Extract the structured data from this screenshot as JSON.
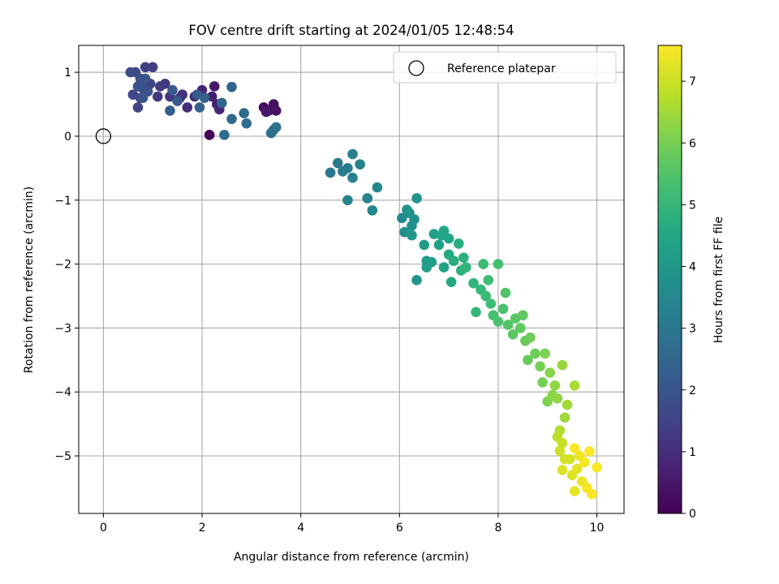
{
  "chart_data": {
    "type": "scatter",
    "title": "FOV centre drift starting at 2024/01/05 12:48:54",
    "xlabel": "Angular distance from reference (arcmin)",
    "ylabel": "Rotation from reference (arcmin)",
    "xlim": [
      -0.5,
      10.55
    ],
    "ylim": [
      -5.9,
      1.42
    ],
    "xticks": [
      0,
      2,
      4,
      6,
      8,
      10
    ],
    "yticks": [
      1,
      0,
      -1,
      -2,
      -3,
      -4,
      -5
    ],
    "xtick_labels": [
      "0",
      "2",
      "4",
      "6",
      "8",
      "10"
    ],
    "ytick_labels": [
      "1",
      "0",
      "−1",
      "−2",
      "−3",
      "−4",
      "−5"
    ],
    "grid": true,
    "legend": {
      "position": "top-right",
      "label": "Reference platepar"
    },
    "reference_point": {
      "x": 0,
      "y": 0
    },
    "colorbar": {
      "label": "Hours from first FF file",
      "range": [
        0,
        7.58
      ],
      "ticks": [
        0,
        1,
        2,
        3,
        4,
        5,
        6,
        7
      ],
      "tick_labels": [
        "0",
        "1",
        "2",
        "3",
        "4",
        "5",
        "6",
        "7"
      ],
      "colormap": "viridis"
    },
    "points": [
      {
        "x": 2.15,
        "y": 0.02,
        "c": 0.1
      },
      {
        "x": 3.25,
        "y": 0.45,
        "c": 0.2
      },
      {
        "x": 3.35,
        "y": 0.4,
        "c": 0.3
      },
      {
        "x": 3.45,
        "y": 0.5,
        "c": 0.3
      },
      {
        "x": 3.5,
        "y": 0.4,
        "c": 0.4
      },
      {
        "x": 3.3,
        "y": 0.38,
        "c": 0.5
      },
      {
        "x": 2.25,
        "y": 0.78,
        "c": 0.5
      },
      {
        "x": 2.2,
        "y": 0.62,
        "c": 0.6
      },
      {
        "x": 2.3,
        "y": 0.5,
        "c": 0.7
      },
      {
        "x": 2.35,
        "y": 0.42,
        "c": 0.8
      },
      {
        "x": 2.0,
        "y": 0.72,
        "c": 0.8
      },
      {
        "x": 1.85,
        "y": 0.62,
        "c": 0.9
      },
      {
        "x": 1.6,
        "y": 0.65,
        "c": 1.0
      },
      {
        "x": 1.7,
        "y": 0.45,
        "c": 1.0
      },
      {
        "x": 1.55,
        "y": 0.6,
        "c": 1.1
      },
      {
        "x": 1.35,
        "y": 0.62,
        "c": 1.2
      },
      {
        "x": 1.25,
        "y": 0.82,
        "c": 1.2
      },
      {
        "x": 1.15,
        "y": 0.78,
        "c": 1.3
      },
      {
        "x": 1.1,
        "y": 0.62,
        "c": 1.3
      },
      {
        "x": 1.0,
        "y": 1.08,
        "c": 1.4
      },
      {
        "x": 0.85,
        "y": 1.08,
        "c": 1.4
      },
      {
        "x": 0.95,
        "y": 0.82,
        "c": 1.5
      },
      {
        "x": 0.7,
        "y": 0.45,
        "c": 1.5
      },
      {
        "x": 0.75,
        "y": 0.6,
        "c": 1.6
      },
      {
        "x": 0.6,
        "y": 0.65,
        "c": 1.6
      },
      {
        "x": 0.55,
        "y": 1.0,
        "c": 1.7
      },
      {
        "x": 0.65,
        "y": 1.0,
        "c": 1.7
      },
      {
        "x": 0.75,
        "y": 0.9,
        "c": 1.8
      },
      {
        "x": 0.8,
        "y": 0.75,
        "c": 1.8
      },
      {
        "x": 0.85,
        "y": 0.9,
        "c": 1.9
      },
      {
        "x": 0.9,
        "y": 0.7,
        "c": 1.9
      },
      {
        "x": 0.7,
        "y": 0.78,
        "c": 2.0
      },
      {
        "x": 0.8,
        "y": 0.6,
        "c": 2.0
      },
      {
        "x": 1.4,
        "y": 0.72,
        "c": 2.1
      },
      {
        "x": 1.5,
        "y": 0.55,
        "c": 2.1
      },
      {
        "x": 1.35,
        "y": 0.4,
        "c": 2.2
      },
      {
        "x": 1.9,
        "y": 0.65,
        "c": 2.2
      },
      {
        "x": 2.05,
        "y": 0.6,
        "c": 2.3
      },
      {
        "x": 1.95,
        "y": 0.45,
        "c": 2.3
      },
      {
        "x": 2.6,
        "y": 0.77,
        "c": 2.4
      },
      {
        "x": 2.4,
        "y": 0.52,
        "c": 2.5
      },
      {
        "x": 2.6,
        "y": 0.27,
        "c": 2.6
      },
      {
        "x": 2.85,
        "y": 0.36,
        "c": 2.6
      },
      {
        "x": 2.9,
        "y": 0.2,
        "c": 2.7
      },
      {
        "x": 2.45,
        "y": 0.02,
        "c": 2.7
      },
      {
        "x": 3.4,
        "y": 0.05,
        "c": 2.8
      },
      {
        "x": 3.45,
        "y": 0.1,
        "c": 2.8
      },
      {
        "x": 3.5,
        "y": 0.14,
        "c": 2.9
      },
      {
        "x": 4.6,
        "y": -0.57,
        "c": 3.0
      },
      {
        "x": 4.75,
        "y": -0.42,
        "c": 3.0
      },
      {
        "x": 4.85,
        "y": -0.55,
        "c": 3.1
      },
      {
        "x": 4.95,
        "y": -0.5,
        "c": 3.1
      },
      {
        "x": 5.05,
        "y": -0.65,
        "c": 3.2
      },
      {
        "x": 5.05,
        "y": -0.28,
        "c": 3.3
      },
      {
        "x": 5.2,
        "y": -0.44,
        "c": 3.3
      },
      {
        "x": 4.95,
        "y": -1.0,
        "c": 3.4
      },
      {
        "x": 5.35,
        "y": -0.97,
        "c": 3.4
      },
      {
        "x": 5.45,
        "y": -1.16,
        "c": 3.5
      },
      {
        "x": 5.55,
        "y": -0.8,
        "c": 3.5
      },
      {
        "x": 6.05,
        "y": -1.28,
        "c": 3.6
      },
      {
        "x": 6.1,
        "y": -1.5,
        "c": 3.7
      },
      {
        "x": 6.2,
        "y": -1.2,
        "c": 3.7
      },
      {
        "x": 6.25,
        "y": -1.4,
        "c": 3.8
      },
      {
        "x": 6.3,
        "y": -1.3,
        "c": 3.8
      },
      {
        "x": 6.15,
        "y": -1.15,
        "c": 3.9
      },
      {
        "x": 6.35,
        "y": -0.97,
        "c": 3.9
      },
      {
        "x": 6.25,
        "y": -1.55,
        "c": 4.0
      },
      {
        "x": 6.35,
        "y": -2.25,
        "c": 4.0
      },
      {
        "x": 6.5,
        "y": -1.7,
        "c": 4.1
      },
      {
        "x": 6.55,
        "y": -1.95,
        "c": 4.1
      },
      {
        "x": 6.55,
        "y": -2.05,
        "c": 4.2
      },
      {
        "x": 6.65,
        "y": -1.97,
        "c": 4.2
      },
      {
        "x": 6.7,
        "y": -1.53,
        "c": 4.3
      },
      {
        "x": 6.8,
        "y": -1.7,
        "c": 4.3
      },
      {
        "x": 6.85,
        "y": -1.55,
        "c": 4.4
      },
      {
        "x": 6.9,
        "y": -2.05,
        "c": 4.4
      },
      {
        "x": 6.9,
        "y": -1.48,
        "c": 4.5
      },
      {
        "x": 7.0,
        "y": -1.6,
        "c": 4.5
      },
      {
        "x": 7.0,
        "y": -1.85,
        "c": 4.6
      },
      {
        "x": 7.05,
        "y": -2.28,
        "c": 4.6
      },
      {
        "x": 7.1,
        "y": -1.95,
        "c": 4.7
      },
      {
        "x": 7.2,
        "y": -1.68,
        "c": 4.7
      },
      {
        "x": 7.25,
        "y": -2.1,
        "c": 4.8
      },
      {
        "x": 7.3,
        "y": -1.9,
        "c": 4.8
      },
      {
        "x": 7.35,
        "y": -2.05,
        "c": 4.9
      },
      {
        "x": 7.5,
        "y": -2.3,
        "c": 4.9
      },
      {
        "x": 7.55,
        "y": -2.75,
        "c": 5.0
      },
      {
        "x": 7.65,
        "y": -2.4,
        "c": 5.0
      },
      {
        "x": 7.7,
        "y": -2.0,
        "c": 5.1
      },
      {
        "x": 7.75,
        "y": -2.5,
        "c": 5.1
      },
      {
        "x": 7.8,
        "y": -2.25,
        "c": 5.2
      },
      {
        "x": 7.85,
        "y": -2.62,
        "c": 5.2
      },
      {
        "x": 7.9,
        "y": -2.8,
        "c": 5.3
      },
      {
        "x": 8.0,
        "y": -2.0,
        "c": 5.3
      },
      {
        "x": 8.0,
        "y": -2.9,
        "c": 5.4
      },
      {
        "x": 8.1,
        "y": -2.7,
        "c": 5.4
      },
      {
        "x": 8.15,
        "y": -2.45,
        "c": 5.5
      },
      {
        "x": 8.2,
        "y": -2.95,
        "c": 5.5
      },
      {
        "x": 8.3,
        "y": -3.1,
        "c": 5.6
      },
      {
        "x": 8.35,
        "y": -2.85,
        "c": 5.6
      },
      {
        "x": 8.45,
        "y": -3.0,
        "c": 5.7
      },
      {
        "x": 8.5,
        "y": -2.8,
        "c": 5.7
      },
      {
        "x": 8.55,
        "y": -3.2,
        "c": 5.8
      },
      {
        "x": 8.6,
        "y": -3.5,
        "c": 5.8
      },
      {
        "x": 8.65,
        "y": -3.15,
        "c": 5.9
      },
      {
        "x": 8.75,
        "y": -3.4,
        "c": 5.9
      },
      {
        "x": 8.85,
        "y": -3.6,
        "c": 6.0
      },
      {
        "x": 8.9,
        "y": -3.85,
        "c": 6.0
      },
      {
        "x": 8.95,
        "y": -3.4,
        "c": 6.1
      },
      {
        "x": 9.0,
        "y": -4.15,
        "c": 6.1
      },
      {
        "x": 9.05,
        "y": -3.7,
        "c": 6.2
      },
      {
        "x": 9.1,
        "y": -4.05,
        "c": 6.2
      },
      {
        "x": 9.15,
        "y": -3.9,
        "c": 6.3
      },
      {
        "x": 9.2,
        "y": -4.1,
        "c": 6.3
      },
      {
        "x": 9.3,
        "y": -3.58,
        "c": 6.4
      },
      {
        "x": 9.35,
        "y": -4.4,
        "c": 6.5
      },
      {
        "x": 9.4,
        "y": -4.2,
        "c": 6.5
      },
      {
        "x": 9.55,
        "y": -3.9,
        "c": 6.6
      },
      {
        "x": 9.25,
        "y": -4.6,
        "c": 6.7
      },
      {
        "x": 9.2,
        "y": -4.7,
        "c": 6.8
      },
      {
        "x": 9.3,
        "y": -4.8,
        "c": 6.9
      },
      {
        "x": 9.25,
        "y": -4.92,
        "c": 7.0
      },
      {
        "x": 9.35,
        "y": -5.05,
        "c": 7.1
      },
      {
        "x": 9.45,
        "y": -5.05,
        "c": 7.1
      },
      {
        "x": 9.3,
        "y": -5.22,
        "c": 7.2
      },
      {
        "x": 9.5,
        "y": -5.3,
        "c": 7.2
      },
      {
        "x": 9.55,
        "y": -5.55,
        "c": 7.3
      },
      {
        "x": 9.6,
        "y": -5.2,
        "c": 7.3
      },
      {
        "x": 9.65,
        "y": -5.0,
        "c": 7.4
      },
      {
        "x": 9.7,
        "y": -5.4,
        "c": 7.4
      },
      {
        "x": 9.75,
        "y": -5.1,
        "c": 7.5
      },
      {
        "x": 9.8,
        "y": -5.5,
        "c": 7.5
      },
      {
        "x": 9.9,
        "y": -5.6,
        "c": 7.55
      },
      {
        "x": 10.0,
        "y": -5.18,
        "c": 7.58
      },
      {
        "x": 9.85,
        "y": -4.93,
        "c": 7.58
      },
      {
        "x": 9.55,
        "y": -4.88,
        "c": 7.5
      }
    ]
  }
}
